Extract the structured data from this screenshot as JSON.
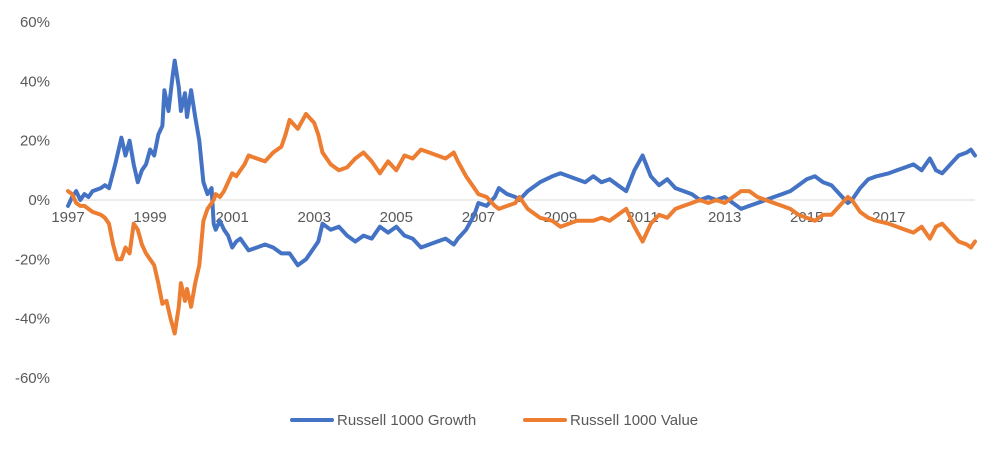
{
  "chart_data": {
    "type": "line",
    "title": "",
    "xlabel": "",
    "ylabel": "",
    "ylim": [
      -0.6,
      0.6
    ],
    "xlim": [
      1997,
      2019.1
    ],
    "y_ticks": [
      {
        "value": 0.6,
        "label": "60%"
      },
      {
        "value": 0.4,
        "label": "40%"
      },
      {
        "value": 0.2,
        "label": "20%"
      },
      {
        "value": 0.0,
        "label": "0%"
      },
      {
        "value": -0.2,
        "label": "-20%"
      },
      {
        "value": -0.4,
        "label": "-40%"
      },
      {
        "value": -0.6,
        "label": "-60%"
      }
    ],
    "x_ticks": [
      {
        "value": 1997,
        "label": "1997"
      },
      {
        "value": 1999,
        "label": "1999"
      },
      {
        "value": 2001,
        "label": "2001"
      },
      {
        "value": 2003,
        "label": "2003"
      },
      {
        "value": 2005,
        "label": "2005"
      },
      {
        "value": 2007,
        "label": "2007"
      },
      {
        "value": 2009,
        "label": "2009"
      },
      {
        "value": 2011,
        "label": "2011"
      },
      {
        "value": 2013,
        "label": "2013"
      },
      {
        "value": 2015,
        "label": "2015"
      },
      {
        "value": 2017,
        "label": "2017"
      }
    ],
    "legend_position": "bottom",
    "gridlines": false,
    "series": [
      {
        "name": "Russell 1000 Growth",
        "color": "#4472C4",
        "points": [
          [
            1997.0,
            -0.02
          ],
          [
            1997.1,
            0.01
          ],
          [
            1997.2,
            0.03
          ],
          [
            1997.3,
            0.0
          ],
          [
            1997.4,
            0.02
          ],
          [
            1997.5,
            0.01
          ],
          [
            1997.6,
            0.03
          ],
          [
            1997.8,
            0.04
          ],
          [
            1997.9,
            0.05
          ],
          [
            1998.0,
            0.04
          ],
          [
            1998.15,
            0.12
          ],
          [
            1998.3,
            0.21
          ],
          [
            1998.4,
            0.15
          ],
          [
            1998.5,
            0.2
          ],
          [
            1998.6,
            0.12
          ],
          [
            1998.7,
            0.06
          ],
          [
            1998.8,
            0.1
          ],
          [
            1998.9,
            0.12
          ],
          [
            1999.0,
            0.17
          ],
          [
            1999.1,
            0.15
          ],
          [
            1999.2,
            0.22
          ],
          [
            1999.3,
            0.25
          ],
          [
            1999.35,
            0.37
          ],
          [
            1999.45,
            0.3
          ],
          [
            1999.55,
            0.42
          ],
          [
            1999.6,
            0.47
          ],
          [
            1999.7,
            0.38
          ],
          [
            1999.75,
            0.3
          ],
          [
            1999.85,
            0.36
          ],
          [
            1999.9,
            0.28
          ],
          [
            2000.0,
            0.37
          ],
          [
            2000.1,
            0.28
          ],
          [
            2000.2,
            0.2
          ],
          [
            2000.3,
            0.06
          ],
          [
            2000.4,
            0.02
          ],
          [
            2000.5,
            0.04
          ],
          [
            2000.55,
            -0.08
          ],
          [
            2000.6,
            -0.1
          ],
          [
            2000.7,
            -0.07
          ],
          [
            2000.8,
            -0.1
          ],
          [
            2000.9,
            -0.12
          ],
          [
            2001.0,
            -0.16
          ],
          [
            2001.1,
            -0.14
          ],
          [
            2001.2,
            -0.13
          ],
          [
            2001.3,
            -0.15
          ],
          [
            2001.4,
            -0.17
          ],
          [
            2001.6,
            -0.16
          ],
          [
            2001.8,
            -0.15
          ],
          [
            2002.0,
            -0.16
          ],
          [
            2002.2,
            -0.18
          ],
          [
            2002.4,
            -0.18
          ],
          [
            2002.6,
            -0.22
          ],
          [
            2002.8,
            -0.2
          ],
          [
            2003.0,
            -0.16
          ],
          [
            2003.1,
            -0.14
          ],
          [
            2003.2,
            -0.08
          ],
          [
            2003.4,
            -0.1
          ],
          [
            2003.6,
            -0.09
          ],
          [
            2003.8,
            -0.12
          ],
          [
            2004.0,
            -0.14
          ],
          [
            2004.2,
            -0.12
          ],
          [
            2004.4,
            -0.13
          ],
          [
            2004.6,
            -0.09
          ],
          [
            2004.8,
            -0.11
          ],
          [
            2005.0,
            -0.09
          ],
          [
            2005.2,
            -0.12
          ],
          [
            2005.4,
            -0.13
          ],
          [
            2005.6,
            -0.16
          ],
          [
            2005.8,
            -0.15
          ],
          [
            2006.0,
            -0.14
          ],
          [
            2006.2,
            -0.13
          ],
          [
            2006.4,
            -0.15
          ],
          [
            2006.5,
            -0.13
          ],
          [
            2006.7,
            -0.1
          ],
          [
            2006.9,
            -0.05
          ],
          [
            2007.0,
            -0.01
          ],
          [
            2007.2,
            -0.02
          ],
          [
            2007.4,
            0.01
          ],
          [
            2007.5,
            0.04
          ],
          [
            2007.7,
            0.02
          ],
          [
            2007.9,
            0.01
          ],
          [
            2008.0,
            0.0
          ],
          [
            2008.2,
            0.03
          ],
          [
            2008.5,
            0.06
          ],
          [
            2008.8,
            0.08
          ],
          [
            2009.0,
            0.09
          ],
          [
            2009.2,
            0.08
          ],
          [
            2009.4,
            0.07
          ],
          [
            2009.6,
            0.06
          ],
          [
            2009.8,
            0.08
          ],
          [
            2010.0,
            0.06
          ],
          [
            2010.2,
            0.07
          ],
          [
            2010.4,
            0.05
          ],
          [
            2010.6,
            0.03
          ],
          [
            2010.8,
            0.1
          ],
          [
            2011.0,
            0.15
          ],
          [
            2011.2,
            0.08
          ],
          [
            2011.4,
            0.05
          ],
          [
            2011.6,
            0.07
          ],
          [
            2011.8,
            0.04
          ],
          [
            2012.0,
            0.03
          ],
          [
            2012.2,
            0.02
          ],
          [
            2012.4,
            0.0
          ],
          [
            2012.6,
            0.01
          ],
          [
            2012.8,
            0.0
          ],
          [
            2013.0,
            0.01
          ],
          [
            2013.2,
            -0.01
          ],
          [
            2013.4,
            -0.03
          ],
          [
            2013.6,
            -0.02
          ],
          [
            2013.8,
            -0.01
          ],
          [
            2014.0,
            0.0
          ],
          [
            2014.2,
            0.01
          ],
          [
            2014.4,
            0.02
          ],
          [
            2014.6,
            0.03
          ],
          [
            2014.8,
            0.05
          ],
          [
            2015.0,
            0.07
          ],
          [
            2015.2,
            0.08
          ],
          [
            2015.4,
            0.06
          ],
          [
            2015.6,
            0.05
          ],
          [
            2015.8,
            0.02
          ],
          [
            2016.0,
            -0.01
          ],
          [
            2016.1,
            0.0
          ],
          [
            2016.3,
            0.04
          ],
          [
            2016.5,
            0.07
          ],
          [
            2016.7,
            0.08
          ],
          [
            2017.0,
            0.09
          ],
          [
            2017.2,
            0.1
          ],
          [
            2017.4,
            0.11
          ],
          [
            2017.6,
            0.12
          ],
          [
            2017.8,
            0.1
          ],
          [
            2018.0,
            0.14
          ],
          [
            2018.15,
            0.1
          ],
          [
            2018.3,
            0.09
          ],
          [
            2018.5,
            0.12
          ],
          [
            2018.7,
            0.15
          ],
          [
            2018.9,
            0.16
          ],
          [
            2019.0,
            0.17
          ],
          [
            2019.1,
            0.15
          ]
        ]
      },
      {
        "name": "Russell 1000 Value",
        "color": "#ED7D31",
        "points": [
          [
            1997.0,
            0.03
          ],
          [
            1997.1,
            0.02
          ],
          [
            1997.2,
            -0.01
          ],
          [
            1997.3,
            -0.02
          ],
          [
            1997.4,
            -0.02
          ],
          [
            1997.5,
            -0.03
          ],
          [
            1997.6,
            -0.04
          ],
          [
            1997.8,
            -0.05
          ],
          [
            1997.9,
            -0.06
          ],
          [
            1998.0,
            -0.08
          ],
          [
            1998.1,
            -0.15
          ],
          [
            1998.2,
            -0.2
          ],
          [
            1998.3,
            -0.2
          ],
          [
            1998.4,
            -0.16
          ],
          [
            1998.5,
            -0.18
          ],
          [
            1998.6,
            -0.08
          ],
          [
            1998.7,
            -0.1
          ],
          [
            1998.8,
            -0.15
          ],
          [
            1998.9,
            -0.18
          ],
          [
            1999.0,
            -0.2
          ],
          [
            1999.1,
            -0.22
          ],
          [
            1999.2,
            -0.28
          ],
          [
            1999.3,
            -0.35
          ],
          [
            1999.4,
            -0.34
          ],
          [
            1999.5,
            -0.4
          ],
          [
            1999.6,
            -0.45
          ],
          [
            1999.7,
            -0.36
          ],
          [
            1999.75,
            -0.28
          ],
          [
            1999.85,
            -0.34
          ],
          [
            1999.9,
            -0.3
          ],
          [
            2000.0,
            -0.36
          ],
          [
            2000.1,
            -0.28
          ],
          [
            2000.2,
            -0.22
          ],
          [
            2000.3,
            -0.07
          ],
          [
            2000.4,
            -0.03
          ],
          [
            2000.5,
            -0.01
          ],
          [
            2000.55,
            0.0
          ],
          [
            2000.6,
            0.02
          ],
          [
            2000.7,
            0.01
          ],
          [
            2000.8,
            0.03
          ],
          [
            2000.9,
            0.06
          ],
          [
            2001.0,
            0.09
          ],
          [
            2001.1,
            0.08
          ],
          [
            2001.2,
            0.1
          ],
          [
            2001.3,
            0.12
          ],
          [
            2001.4,
            0.15
          ],
          [
            2001.6,
            0.14
          ],
          [
            2001.8,
            0.13
          ],
          [
            2002.0,
            0.16
          ],
          [
            2002.2,
            0.18
          ],
          [
            2002.3,
            0.22
          ],
          [
            2002.4,
            0.27
          ],
          [
            2002.6,
            0.24
          ],
          [
            2002.8,
            0.29
          ],
          [
            2003.0,
            0.26
          ],
          [
            2003.1,
            0.22
          ],
          [
            2003.2,
            0.16
          ],
          [
            2003.4,
            0.12
          ],
          [
            2003.6,
            0.1
          ],
          [
            2003.8,
            0.11
          ],
          [
            2004.0,
            0.14
          ],
          [
            2004.2,
            0.16
          ],
          [
            2004.4,
            0.13
          ],
          [
            2004.6,
            0.09
          ],
          [
            2004.8,
            0.13
          ],
          [
            2005.0,
            0.1
          ],
          [
            2005.2,
            0.15
          ],
          [
            2005.4,
            0.14
          ],
          [
            2005.6,
            0.17
          ],
          [
            2005.8,
            0.16
          ],
          [
            2006.0,
            0.15
          ],
          [
            2006.2,
            0.14
          ],
          [
            2006.4,
            0.16
          ],
          [
            2006.5,
            0.13
          ],
          [
            2006.7,
            0.08
          ],
          [
            2006.9,
            0.04
          ],
          [
            2007.0,
            0.02
          ],
          [
            2007.2,
            0.01
          ],
          [
            2007.4,
            -0.02
          ],
          [
            2007.5,
            -0.03
          ],
          [
            2007.7,
            -0.02
          ],
          [
            2007.9,
            -0.01
          ],
          [
            2008.0,
            0.01
          ],
          [
            2008.2,
            -0.03
          ],
          [
            2008.5,
            -0.06
          ],
          [
            2008.8,
            -0.07
          ],
          [
            2009.0,
            -0.09
          ],
          [
            2009.2,
            -0.08
          ],
          [
            2009.4,
            -0.07
          ],
          [
            2009.6,
            -0.07
          ],
          [
            2009.8,
            -0.07
          ],
          [
            2010.0,
            -0.06
          ],
          [
            2010.2,
            -0.07
          ],
          [
            2010.4,
            -0.05
          ],
          [
            2010.6,
            -0.03
          ],
          [
            2010.8,
            -0.09
          ],
          [
            2011.0,
            -0.14
          ],
          [
            2011.2,
            -0.08
          ],
          [
            2011.4,
            -0.05
          ],
          [
            2011.6,
            -0.06
          ],
          [
            2011.8,
            -0.03
          ],
          [
            2012.0,
            -0.02
          ],
          [
            2012.2,
            -0.01
          ],
          [
            2012.4,
            0.0
          ],
          [
            2012.6,
            -0.01
          ],
          [
            2012.8,
            0.0
          ],
          [
            2013.0,
            -0.01
          ],
          [
            2013.2,
            0.01
          ],
          [
            2013.4,
            0.03
          ],
          [
            2013.6,
            0.03
          ],
          [
            2013.8,
            0.01
          ],
          [
            2014.0,
            0.0
          ],
          [
            2014.2,
            -0.01
          ],
          [
            2014.4,
            -0.02
          ],
          [
            2014.6,
            -0.03
          ],
          [
            2014.8,
            -0.05
          ],
          [
            2015.0,
            -0.06
          ],
          [
            2015.2,
            -0.07
          ],
          [
            2015.4,
            -0.05
          ],
          [
            2015.6,
            -0.05
          ],
          [
            2015.8,
            -0.02
          ],
          [
            2016.0,
            0.01
          ],
          [
            2016.1,
            0.0
          ],
          [
            2016.3,
            -0.04
          ],
          [
            2016.5,
            -0.06
          ],
          [
            2016.7,
            -0.07
          ],
          [
            2017.0,
            -0.08
          ],
          [
            2017.2,
            -0.09
          ],
          [
            2017.4,
            -0.1
          ],
          [
            2017.6,
            -0.11
          ],
          [
            2017.8,
            -0.09
          ],
          [
            2018.0,
            -0.13
          ],
          [
            2018.15,
            -0.09
          ],
          [
            2018.3,
            -0.08
          ],
          [
            2018.5,
            -0.11
          ],
          [
            2018.7,
            -0.14
          ],
          [
            2018.9,
            -0.15
          ],
          [
            2019.0,
            -0.16
          ],
          [
            2019.1,
            -0.14
          ]
        ]
      }
    ]
  }
}
